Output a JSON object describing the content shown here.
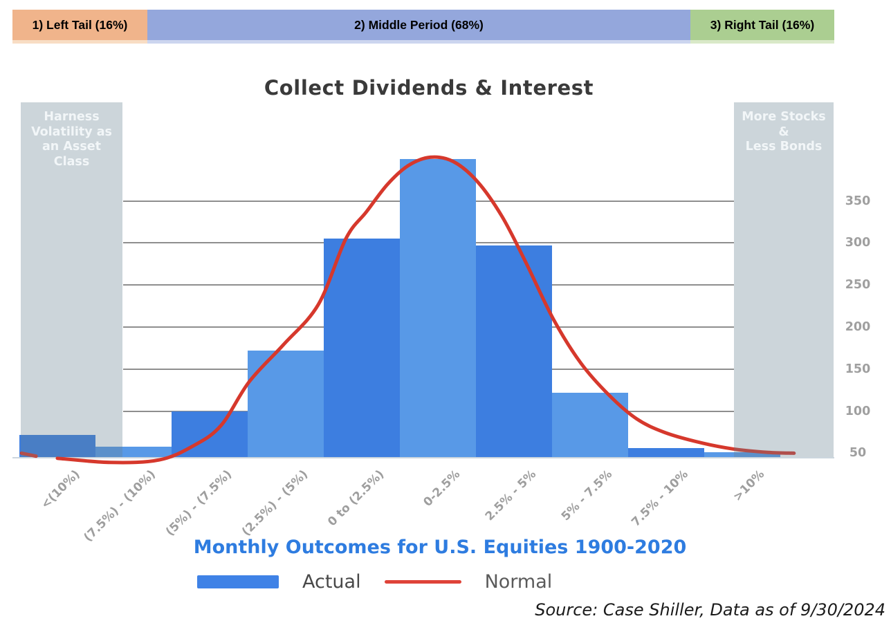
{
  "header": {
    "segments": [
      {
        "label": "1) Left Tail (16%)",
        "bg": "#f0b48b",
        "edge": "#f8ddc4"
      },
      {
        "label": "2) Middle Period (68%)",
        "bg": "#94a7dc",
        "edge": "#ccd5ef"
      },
      {
        "label": "3) Right Tail (16%)",
        "bg": "#abce91",
        "edge": "#d9e9c8"
      }
    ]
  },
  "annotations": {
    "left_box": "Harness\nVolatility as\nan Asset\nClass",
    "right_box": "More Stocks\n&\nLess Bonds",
    "box_fill": "rgba(100,128,143,0.33)",
    "box_text_color": "#f2f6f8"
  },
  "chart_data": {
    "type": "bar",
    "title": "Collect Dividends & Interest",
    "categories": [
      "<(10%)",
      "(7.5%) - (10%)",
      "(5%) - (7.5%)",
      "(2.5%) - (5%)",
      "0 to (2.5%)",
      "0-2.5%",
      "2.5% - 5%",
      "5% - 7.5%",
      "7.5% - 10%",
      ">10%"
    ],
    "series": [
      {
        "name": "Actual",
        "type": "bar",
        "values": [
          72,
          58,
          100,
          172,
          305,
          400,
          297,
          122,
          56,
          51
        ]
      },
      {
        "name": "Normal",
        "type": "line",
        "values_at_categories": [
          41,
          40,
          69,
          187,
          335,
          403,
          310,
          142,
          75,
          56
        ]
      }
    ],
    "xlabel": "Monthly Outcomes for U.S. Equities 1900-2020",
    "ylabel": "",
    "yticks": [
      50,
      100,
      150,
      200,
      250,
      300,
      350
    ],
    "ytick_side": "right",
    "ylim": [
      45,
      468
    ],
    "grid": "horizontal",
    "gridline_values": [
      100,
      150,
      200,
      250,
      300,
      350
    ],
    "bar_colors_alternating": [
      "#3d7ee0",
      "#5899e7"
    ],
    "line_color": "#d6382c",
    "normal_curve_points": [
      [
        0.0,
        44
      ],
      [
        0.7,
        39
      ],
      [
        1.34,
        42
      ],
      [
        1.79,
        59
      ],
      [
        2.15,
        83
      ],
      [
        2.52,
        135
      ],
      [
        2.97,
        179
      ],
      [
        3.43,
        227
      ],
      [
        3.79,
        305
      ],
      [
        4.06,
        337
      ],
      [
        4.34,
        370
      ],
      [
        4.61,
        392
      ],
      [
        4.9,
        402
      ],
      [
        5.2,
        397
      ],
      [
        5.52,
        373
      ],
      [
        5.84,
        332
      ],
      [
        6.15,
        278
      ],
      [
        6.52,
        209
      ],
      [
        6.88,
        157
      ],
      [
        7.25,
        119
      ],
      [
        7.61,
        91
      ],
      [
        7.97,
        75
      ],
      [
        8.43,
        63
      ],
      [
        8.88,
        55
      ],
      [
        9.34,
        51
      ],
      [
        9.68,
        50
      ]
    ],
    "normal_curve_dash": [
      [
        -0.47,
        50
      ],
      [
        -0.28,
        46.5
      ]
    ]
  },
  "legend": {
    "items": [
      {
        "label": "Actual",
        "swatch": "bar",
        "color": "#3f82e6"
      },
      {
        "label": "Normal",
        "swatch": "line",
        "color": "#df4338"
      }
    ]
  },
  "source": {
    "text": "Source: Case Shiller, Data as of 9/30/2024"
  }
}
